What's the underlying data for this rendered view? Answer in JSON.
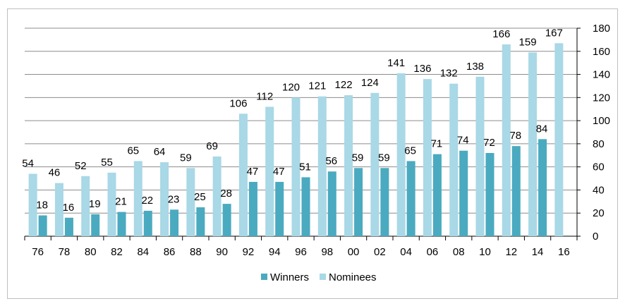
{
  "chart_data": {
    "type": "bar",
    "categories": [
      "76",
      "78",
      "80",
      "82",
      "84",
      "86",
      "88",
      "90",
      "92",
      "94",
      "96",
      "98",
      "00",
      "02",
      "04",
      "06",
      "08",
      "10",
      "12",
      "14",
      "16"
    ],
    "series": [
      {
        "name": "Winners",
        "color": "#4aaac0",
        "values": [
          18,
          16,
          19,
          21,
          22,
          23,
          25,
          28,
          47,
          47,
          51,
          56,
          59,
          59,
          65,
          71,
          74,
          72,
          78,
          84,
          null
        ]
      },
      {
        "name": "Nominees",
        "color": "#a9d8e6",
        "values": [
          54,
          46,
          52,
          55,
          65,
          64,
          59,
          69,
          106,
          112,
          120,
          121,
          122,
          124,
          141,
          136,
          132,
          138,
          166,
          159,
          167
        ]
      }
    ],
    "ylim": [
      0,
      180
    ],
    "yticks": [
      "0",
      "20",
      "40",
      "60",
      "80",
      "100",
      "120",
      "140",
      "160",
      "180"
    ],
    "y_axis_side": "right",
    "grid": true,
    "legend_position": "bottom-center",
    "legend": [
      "Winners",
      "Nominees"
    ]
  }
}
